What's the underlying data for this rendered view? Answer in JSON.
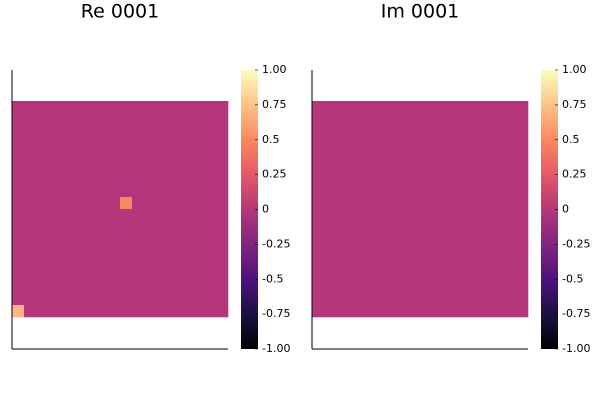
{
  "chart_data": [
    {
      "type": "heatmap",
      "title": "Re 0001",
      "z": [
        [
          0,
          0,
          0,
          0,
          0,
          0,
          0,
          0,
          0,
          0,
          0,
          0,
          0,
          0,
          0,
          0,
          0,
          0
        ],
        [
          0,
          0,
          0,
          0,
          0,
          0,
          0,
          0,
          0,
          0,
          0,
          0,
          0,
          0,
          0,
          0,
          0,
          0
        ],
        [
          0,
          0,
          0,
          0,
          0,
          0,
          0,
          0,
          0,
          0,
          0,
          0,
          0,
          0,
          0,
          0,
          0,
          0
        ],
        [
          0,
          0,
          0,
          0,
          0,
          0,
          0,
          0,
          0,
          0,
          0,
          0,
          0,
          0,
          0,
          0,
          0,
          0
        ],
        [
          0,
          0,
          0,
          0,
          0,
          0,
          0,
          0,
          0,
          0,
          0,
          0,
          0,
          0,
          0,
          0,
          0,
          0
        ],
        [
          0,
          0,
          0,
          0,
          0,
          0,
          0,
          0,
          0,
          0,
          0,
          0,
          0,
          0,
          0,
          0,
          0,
          0
        ],
        [
          0,
          0,
          0,
          0,
          0,
          0,
          0,
          0,
          0,
          0,
          0,
          0,
          0,
          0,
          0,
          0,
          0,
          0
        ],
        [
          0,
          0,
          0,
          0,
          0,
          0,
          0,
          0,
          0,
          0,
          0,
          0,
          0,
          0,
          0,
          0,
          0,
          0
        ],
        [
          0,
          0,
          0,
          0,
          0,
          0,
          0,
          0,
          0,
          0.5,
          0,
          0,
          0,
          0,
          0,
          0,
          0,
          0
        ],
        [
          0,
          0,
          0,
          0,
          0,
          0,
          0,
          0,
          0,
          0,
          0,
          0,
          0,
          0,
          0,
          0,
          0,
          0
        ],
        [
          0,
          0,
          0,
          0,
          0,
          0,
          0,
          0,
          0,
          0,
          0,
          0,
          0,
          0,
          0,
          0,
          0,
          0
        ],
        [
          0,
          0,
          0,
          0,
          0,
          0,
          0,
          0,
          0,
          0,
          0,
          0,
          0,
          0,
          0,
          0,
          0,
          0
        ],
        [
          0,
          0,
          0,
          0,
          0,
          0,
          0,
          0,
          0,
          0,
          0,
          0,
          0,
          0,
          0,
          0,
          0,
          0
        ],
        [
          0,
          0,
          0,
          0,
          0,
          0,
          0,
          0,
          0,
          0,
          0,
          0,
          0,
          0,
          0,
          0,
          0,
          0
        ],
        [
          0,
          0,
          0,
          0,
          0,
          0,
          0,
          0,
          0,
          0,
          0,
          0,
          0,
          0,
          0,
          0,
          0,
          0
        ],
        [
          0,
          0,
          0,
          0,
          0,
          0,
          0,
          0,
          0,
          0,
          0,
          0,
          0,
          0,
          0,
          0,
          0,
          0
        ],
        [
          0,
          0,
          0,
          0,
          0,
          0,
          0,
          0,
          0,
          0,
          0,
          0,
          0,
          0,
          0,
          0,
          0,
          0
        ],
        [
          0.7,
          0,
          0,
          0,
          0,
          0,
          0,
          0,
          0,
          0,
          0,
          0,
          0,
          0,
          0,
          0,
          0,
          0
        ]
      ],
      "zlim": [
        -1,
        1
      ],
      "zticks": [
        {
          "value": 1,
          "label": "1.00"
        },
        0.75,
        0.5,
        0.25,
        0,
        -0.25,
        -0.5,
        -0.75,
        {
          "value": -1,
          "label": "-1.00"
        }
      ],
      "colorscale": [
        "#000004",
        "#1c1044",
        "#4f127b",
        "#812581",
        "#b5367a",
        "#e55964",
        "#fb8761",
        "#fec287",
        "#fcfdbf"
      ]
    },
    {
      "type": "heatmap",
      "title": "Im 0001",
      "z": [
        [
          0,
          0,
          0,
          0,
          0,
          0,
          0,
          0,
          0,
          0,
          0,
          0,
          0,
          0,
          0,
          0,
          0,
          0
        ],
        [
          0,
          0,
          0,
          0,
          0,
          0,
          0,
          0,
          0,
          0,
          0,
          0,
          0,
          0,
          0,
          0,
          0,
          0
        ],
        [
          0,
          0,
          0,
          0,
          0,
          0,
          0,
          0,
          0,
          0,
          0,
          0,
          0,
          0,
          0,
          0,
          0,
          0
        ],
        [
          0,
          0,
          0,
          0,
          0,
          0,
          0,
          0,
          0,
          0,
          0,
          0,
          0,
          0,
          0,
          0,
          0,
          0
        ],
        [
          0,
          0,
          0,
          0,
          0,
          0,
          0,
          0,
          0,
          0,
          0,
          0,
          0,
          0,
          0,
          0,
          0,
          0
        ],
        [
          0,
          0,
          0,
          0,
          0,
          0,
          0,
          0,
          0,
          0,
          0,
          0,
          0,
          0,
          0,
          0,
          0,
          0
        ],
        [
          0,
          0,
          0,
          0,
          0,
          0,
          0,
          0,
          0,
          0,
          0,
          0,
          0,
          0,
          0,
          0,
          0,
          0
        ],
        [
          0,
          0,
          0,
          0,
          0,
          0,
          0,
          0,
          0,
          0,
          0,
          0,
          0,
          0,
          0,
          0,
          0,
          0
        ],
        [
          0,
          0,
          0,
          0,
          0,
          0,
          0,
          0,
          0,
          0,
          0,
          0,
          0,
          0,
          0,
          0,
          0,
          0
        ],
        [
          0,
          0,
          0,
          0,
          0,
          0,
          0,
          0,
          0,
          0,
          0,
          0,
          0,
          0,
          0,
          0,
          0,
          0
        ],
        [
          0,
          0,
          0,
          0,
          0,
          0,
          0,
          0,
          0,
          0,
          0,
          0,
          0,
          0,
          0,
          0,
          0,
          0
        ],
        [
          0,
          0,
          0,
          0,
          0,
          0,
          0,
          0,
          0,
          0,
          0,
          0,
          0,
          0,
          0,
          0,
          0,
          0
        ],
        [
          0,
          0,
          0,
          0,
          0,
          0,
          0,
          0,
          0,
          0,
          0,
          0,
          0,
          0,
          0,
          0,
          0,
          0
        ],
        [
          0,
          0,
          0,
          0,
          0,
          0,
          0,
          0,
          0,
          0,
          0,
          0,
          0,
          0,
          0,
          0,
          0,
          0
        ],
        [
          0,
          0,
          0,
          0,
          0,
          0,
          0,
          0,
          0,
          0,
          0,
          0,
          0,
          0,
          0,
          0,
          0,
          0
        ],
        [
          0,
          0,
          0,
          0,
          0,
          0,
          0,
          0,
          0,
          0,
          0,
          0,
          0,
          0,
          0,
          0,
          0,
          0
        ],
        [
          0,
          0,
          0,
          0,
          0,
          0,
          0,
          0,
          0,
          0,
          0,
          0,
          0,
          0,
          0,
          0,
          0,
          0
        ],
        [
          0,
          0,
          0,
          0,
          0,
          0,
          0,
          0,
          0,
          0,
          0,
          0,
          0,
          0,
          0,
          0,
          0,
          0
        ]
      ],
      "zlim": [
        -1,
        1
      ],
      "zticks": [
        {
          "value": 1,
          "label": "1.00"
        },
        0.75,
        0.5,
        0.25,
        0,
        -0.25,
        -0.5,
        -0.75,
        {
          "value": -1,
          "label": "-1.00"
        }
      ],
      "colorscale": [
        "#000004",
        "#1c1044",
        "#4f127b",
        "#812581",
        "#b5367a",
        "#e55964",
        "#fb8761",
        "#fec287",
        "#fcfdbf"
      ]
    }
  ]
}
